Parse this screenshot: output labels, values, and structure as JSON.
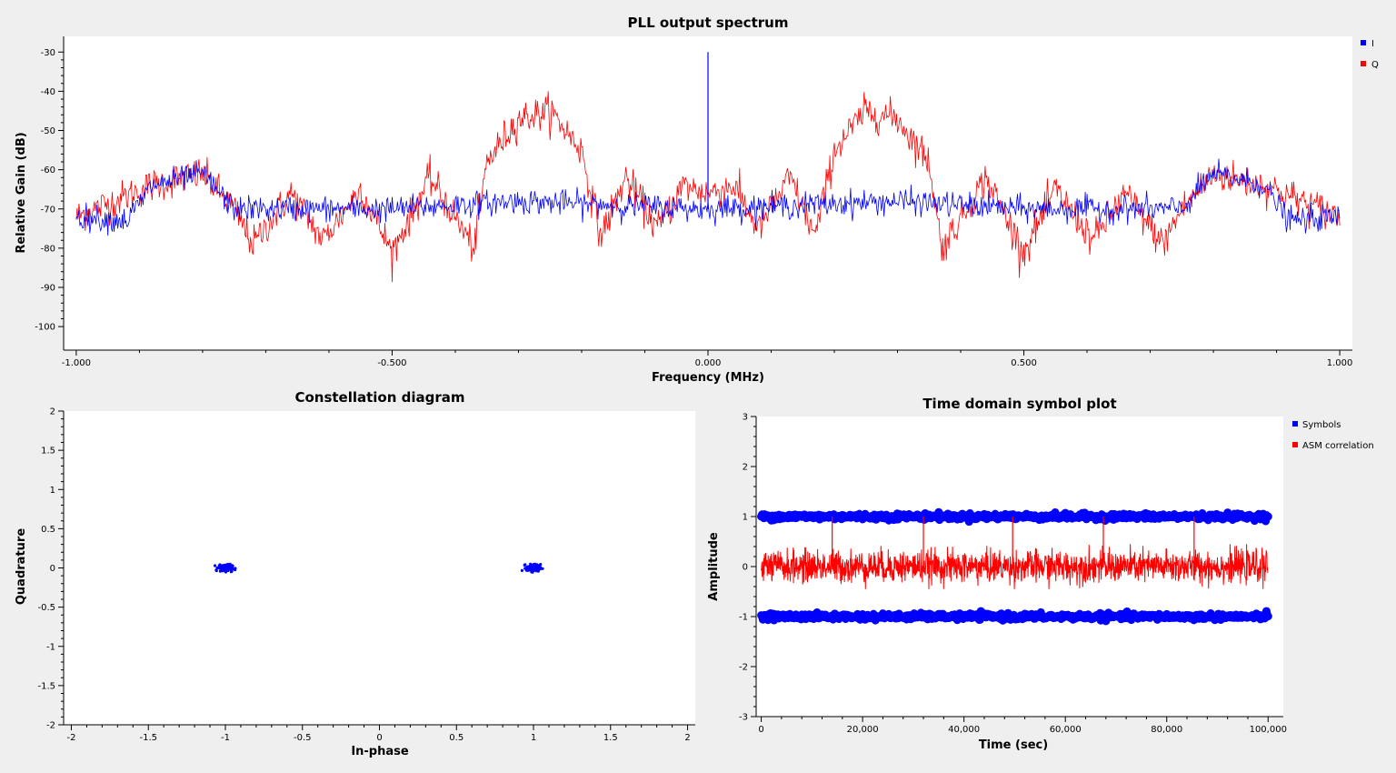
{
  "colors": {
    "blue": "#0000ff",
    "red": "#ff0000",
    "background": "#efefef",
    "plot_area": "#ffffff"
  },
  "chart_data": [
    {
      "id": "spectrum",
      "type": "line",
      "title": "PLL output spectrum",
      "xlabel": "Frequency (MHz)",
      "ylabel": "Relative Gain (dB)",
      "xlim": [
        -1.02,
        1.02
      ],
      "ylim": [
        -106,
        -26
      ],
      "xticks": [
        -1.0,
        -0.5,
        0.0,
        0.5,
        1.0
      ],
      "xtick_labels": [
        "-1.000",
        "-0.500",
        "0.000",
        "0.500",
        "1.000"
      ],
      "yticks": [
        -30,
        -40,
        -50,
        -60,
        -70,
        -80,
        -90,
        -100
      ],
      "ytick_labels": [
        "-30",
        "-40",
        "-50",
        "-60",
        "-70",
        "-80",
        "-90",
        "-100"
      ],
      "grid": false,
      "legend_position": "top-right",
      "series": [
        {
          "name": "I",
          "color": "#0000ff",
          "description_points": [
            [
              -1.0,
              -72
            ],
            [
              -0.92,
              -73
            ],
            [
              -0.88,
              -64
            ],
            [
              -0.8,
              -61
            ],
            [
              -0.75,
              -70
            ],
            [
              -0.5,
              -70
            ],
            [
              -0.3,
              -68
            ],
            [
              0.0,
              -70
            ],
            [
              0.0,
              -30
            ],
            [
              0.3,
              -68
            ],
            [
              0.5,
              -70
            ],
            [
              0.75,
              -70
            ],
            [
              0.8,
              -61
            ],
            [
              0.88,
              -64
            ],
            [
              0.92,
              -73
            ],
            [
              1.0,
              -72
            ]
          ]
        },
        {
          "name": "Q",
          "color": "#ff0000",
          "description_points": [
            [
              -1.0,
              -72
            ],
            [
              -0.88,
              -64
            ],
            [
              -0.8,
              -61
            ],
            [
              -0.75,
              -70
            ],
            [
              -0.72,
              -79
            ],
            [
              -0.66,
              -66
            ],
            [
              -0.61,
              -78
            ],
            [
              -0.55,
              -65
            ],
            [
              -0.5,
              -81
            ],
            [
              -0.44,
              -62
            ],
            [
              -0.37,
              -80
            ],
            [
              -0.35,
              -58
            ],
            [
              -0.3,
              -47
            ],
            [
              -0.25,
              -45
            ],
            [
              -0.2,
              -55
            ],
            [
              -0.17,
              -77
            ],
            [
              -0.13,
              -62
            ],
            [
              -0.08,
              -75
            ],
            [
              -0.04,
              -64
            ],
            [
              0.0,
              -66
            ],
            [
              0.04,
              -64
            ],
            [
              0.08,
              -75
            ],
            [
              0.13,
              -62
            ],
            [
              0.17,
              -77
            ],
            [
              0.2,
              -55
            ],
            [
              0.25,
              -45
            ],
            [
              0.3,
              -47
            ],
            [
              0.35,
              -58
            ],
            [
              0.37,
              -80
            ],
            [
              0.44,
              -62
            ],
            [
              0.5,
              -81
            ],
            [
              0.55,
              -65
            ],
            [
              0.61,
              -78
            ],
            [
              0.66,
              -66
            ],
            [
              0.72,
              -79
            ],
            [
              0.75,
              -70
            ],
            [
              0.8,
              -61
            ],
            [
              0.88,
              -64
            ],
            [
              1.0,
              -72
            ]
          ]
        }
      ]
    },
    {
      "id": "constellation",
      "type": "scatter",
      "title": "Constellation diagram",
      "xlabel": "In-phase",
      "ylabel": "Quadrature",
      "xlim": [
        -2.05,
        2.05
      ],
      "ylim": [
        -2.0,
        2.0
      ],
      "xticks": [
        -2,
        -1.5,
        -1,
        -0.5,
        0,
        0.5,
        1,
        1.5,
        2
      ],
      "xtick_labels": [
        "-2",
        "-1.5",
        "-1",
        "-0.5",
        "0",
        "0.5",
        "1",
        "1.5",
        "2"
      ],
      "yticks": [
        2,
        1.5,
        1,
        0.5,
        0,
        -0.5,
        -1,
        -1.5,
        -2
      ],
      "ytick_labels": [
        "2",
        "1.5",
        "1",
        "0.5",
        "0",
        "-0.5",
        "-1",
        "-1.5",
        "-2"
      ],
      "grid": false,
      "series": [
        {
          "name": "",
          "color": "#0000ff",
          "clusters": [
            [
              -1.0,
              0.0
            ],
            [
              1.0,
              0.0
            ]
          ],
          "spread": 0.05
        }
      ]
    },
    {
      "id": "timedomain",
      "type": "line",
      "title": "Time domain symbol plot",
      "xlabel": "Time (sec)",
      "ylabel": "Amplitude",
      "xlim": [
        -1000,
        103000
      ],
      "ylim": [
        -3,
        3
      ],
      "xticks": [
        0,
        20000,
        40000,
        60000,
        80000,
        100000
      ],
      "xtick_labels": [
        "0",
        "20,000",
        "40,000",
        "60,000",
        "80,000",
        "100,000"
      ],
      "yticks": [
        3,
        2,
        1,
        0,
        -1,
        -2,
        -3
      ],
      "ytick_labels": [
        "3",
        "2",
        "1",
        "0",
        "-1",
        "-2",
        "-3"
      ],
      "grid": false,
      "legend_position": "top-right",
      "series": [
        {
          "name": "Symbols",
          "color": "#0000ff",
          "levels": [
            1,
            -1
          ],
          "x_range": [
            0,
            100000
          ]
        },
        {
          "name": "ASM correlation",
          "color": "#ff0000",
          "noise_center": 0,
          "noise_range": [
            -0.45,
            0.45
          ],
          "x_range": [
            0,
            100000
          ],
          "peaks_x": [
            14000,
            32000,
            49600,
            67500,
            85400
          ],
          "peak_y": 1.0
        }
      ]
    }
  ]
}
